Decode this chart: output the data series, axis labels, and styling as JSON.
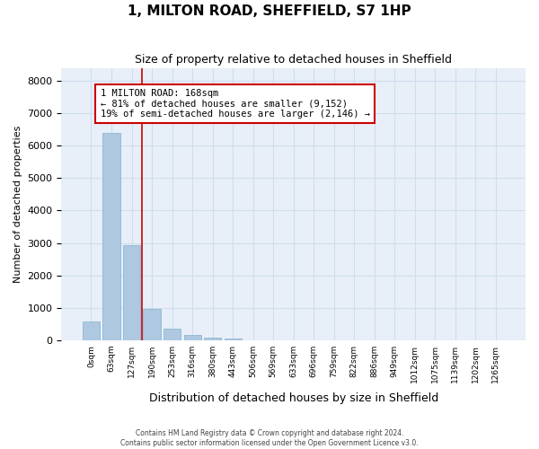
{
  "title": "1, MILTON ROAD, SHEFFIELD, S7 1HP",
  "subtitle": "Size of property relative to detached houses in Sheffield",
  "xlabel": "Distribution of detached houses by size in Sheffield",
  "ylabel": "Number of detached properties",
  "bar_values": [
    580,
    6400,
    2920,
    960,
    360,
    160,
    80,
    60,
    0,
    0,
    0,
    0,
    0,
    0,
    0,
    0,
    0,
    0,
    0,
    0,
    0
  ],
  "bar_labels": [
    "0sqm",
    "63sqm",
    "127sqm",
    "190sqm",
    "253sqm",
    "316sqm",
    "380sqm",
    "443sqm",
    "506sqm",
    "569sqm",
    "633sqm",
    "696sqm",
    "759sqm",
    "822sqm",
    "886sqm",
    "949sqm",
    "1012sqm",
    "1075sqm",
    "1139sqm",
    "1202sqm",
    "1265sqm"
  ],
  "bar_color": "#adc8e0",
  "bar_edge_color": "#85afd0",
  "grid_color": "#d0dded",
  "background_color": "#e8eff8",
  "vline_x": 2.5,
  "vline_color": "#cc0000",
  "annotation_text": "1 MILTON ROAD: 168sqm\n← 81% of detached houses are smaller (9,152)\n19% of semi-detached houses are larger (2,146) →",
  "annotation_box_color": "#cc0000",
  "ylim": [
    0,
    8400
  ],
  "yticks": [
    0,
    1000,
    2000,
    3000,
    4000,
    5000,
    6000,
    7000,
    8000
  ],
  "footer_line1": "Contains HM Land Registry data © Crown copyright and database right 2024.",
  "footer_line2": "Contains public sector information licensed under the Open Government Licence v3.0."
}
